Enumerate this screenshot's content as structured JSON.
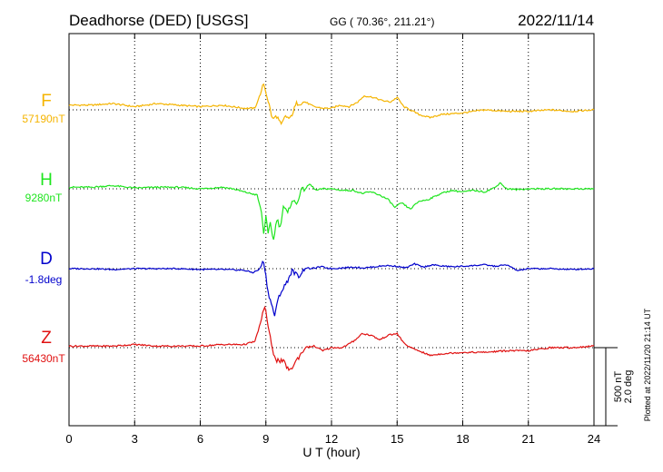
{
  "header": {
    "station": "Deadhorse (DED)  [USGS]",
    "coords": "GG ( 70.36°, 211.21°)",
    "date": "2022/11/14"
  },
  "footer": {
    "plotted": "Plotted at 2022/11/20 21:14 UT"
  },
  "scale": {
    "line1": "500 nT",
    "line2": "2.0 deg"
  },
  "chart_data": {
    "type": "line",
    "title": "Deadhorse (DED)  [USGS]",
    "xlabel": "U T (hour)",
    "ylabel": "",
    "xlim": [
      0,
      24
    ],
    "xticks": [
      0,
      3,
      6,
      9,
      12,
      15,
      18,
      21,
      24
    ],
    "xtick_labels": [
      "0",
      "3",
      "6",
      "9",
      "12",
      "15",
      "18",
      "21",
      "24"
    ],
    "grid": true,
    "scale_bar": "500 nT / 2.0 deg",
    "series": [
      {
        "name": "F",
        "baseline_label": "57190nT",
        "color": "#f5b400",
        "unit": "nT",
        "x": [
          0,
          1,
          2,
          3,
          4,
          5,
          6,
          7,
          8,
          8.5,
          8.8,
          8.9,
          9.1,
          9.3,
          9.5,
          9.7,
          9.9,
          10.1,
          10.4,
          10.8,
          11.2,
          11.6,
          12,
          12.4,
          12.8,
          13.2,
          13.5,
          13.9,
          14.3,
          14.7,
          15,
          15.3,
          15.6,
          16,
          16.5,
          17,
          18,
          19,
          20,
          21,
          22,
          23,
          24
        ],
        "values": [
          30,
          30,
          40,
          20,
          40,
          30,
          20,
          30,
          10,
          10,
          120,
          170,
          60,
          -60,
          -40,
          -100,
          -40,
          -60,
          40,
          50,
          20,
          10,
          10,
          30,
          20,
          50,
          90,
          80,
          60,
          50,
          80,
          20,
          0,
          -30,
          -50,
          -30,
          -20,
          0,
          -10,
          -10,
          0,
          -10,
          0
        ]
      },
      {
        "name": "H",
        "baseline_label": "9280nT",
        "color": "#1ee51e",
        "unit": "nT",
        "x": [
          0,
          1,
          2,
          3,
          4,
          5,
          6,
          7,
          7.5,
          8,
          8.3,
          8.6,
          8.8,
          8.9,
          9.0,
          9.1,
          9.2,
          9.35,
          9.5,
          9.65,
          9.8,
          10.0,
          10.2,
          10.4,
          10.6,
          10.8,
          11.0,
          11.3,
          11.6,
          12,
          12.5,
          13,
          13.4,
          13.8,
          14.2,
          14.6,
          14.9,
          15.2,
          15.6,
          16,
          16.4,
          17,
          17.5,
          18,
          18.5,
          19,
          19.5,
          19.7,
          20,
          20.5,
          21,
          22,
          23,
          24
        ],
        "values": [
          10,
          10,
          20,
          5,
          10,
          10,
          0,
          10,
          0,
          -20,
          -30,
          -40,
          -150,
          -290,
          -170,
          -300,
          -220,
          -330,
          -190,
          -250,
          -110,
          -160,
          -70,
          -100,
          -10,
          0,
          30,
          -10,
          0,
          0,
          -10,
          -10,
          -30,
          -20,
          -40,
          -70,
          -120,
          -90,
          -130,
          -80,
          -70,
          -30,
          -10,
          -20,
          -10,
          -20,
          10,
          40,
          0,
          -5,
          0,
          0,
          0,
          0
        ]
      },
      {
        "name": "D",
        "baseline_label": "-1.8deg",
        "color": "#0000cc",
        "unit": "deg",
        "x": [
          0,
          1,
          2,
          3,
          4,
          5,
          6,
          7,
          8,
          8.4,
          8.7,
          8.9,
          9.0,
          9.1,
          9.25,
          9.4,
          9.6,
          9.8,
          10.0,
          10.2,
          10.5,
          10.8,
          11.1,
          11.5,
          12,
          12.5,
          13,
          13.5,
          14,
          14.5,
          15,
          15.4,
          15.8,
          16.2,
          16.6,
          17,
          17.5,
          18,
          18.5,
          19,
          19.5,
          20,
          20.5,
          21,
          22,
          23,
          24
        ],
        "values": [
          0,
          0,
          -0.02,
          0,
          0,
          0,
          -0.02,
          -0.02,
          -0.04,
          -0.1,
          -0.02,
          0.2,
          -0.2,
          -0.6,
          -0.9,
          -1.2,
          -0.7,
          -0.5,
          -0.3,
          -0.05,
          -0.2,
          0.02,
          0,
          0.05,
          0,
          0.02,
          0.04,
          0.02,
          0.05,
          0.08,
          0.06,
          0.02,
          0.12,
          0.04,
          0.1,
          0.07,
          0.05,
          0.06,
          0.08,
          0.1,
          0.06,
          0.1,
          -0.05,
          0,
          0,
          -0.02,
          0
        ]
      },
      {
        "name": "Z",
        "baseline_label": "56430nT",
        "color": "#e01010",
        "unit": "nT",
        "x": [
          0,
          1,
          2,
          3,
          4,
          5,
          6,
          7,
          8,
          8.5,
          8.8,
          8.95,
          9.1,
          9.3,
          9.5,
          9.8,
          10.1,
          10.4,
          10.8,
          11.2,
          11.6,
          12,
          12.5,
          13,
          13.4,
          13.8,
          14.2,
          14.6,
          15,
          15.3,
          15.6,
          16,
          16.5,
          17,
          18,
          19,
          20,
          21,
          22,
          23,
          24
        ],
        "values": [
          10,
          10,
          10,
          20,
          10,
          10,
          10,
          20,
          20,
          40,
          180,
          270,
          140,
          -20,
          -80,
          -90,
          -150,
          -80,
          0,
          10,
          -20,
          0,
          0,
          40,
          90,
          80,
          50,
          80,
          90,
          30,
          0,
          -20,
          -50,
          -40,
          -30,
          -30,
          -20,
          -20,
          0,
          0,
          10
        ]
      }
    ]
  }
}
